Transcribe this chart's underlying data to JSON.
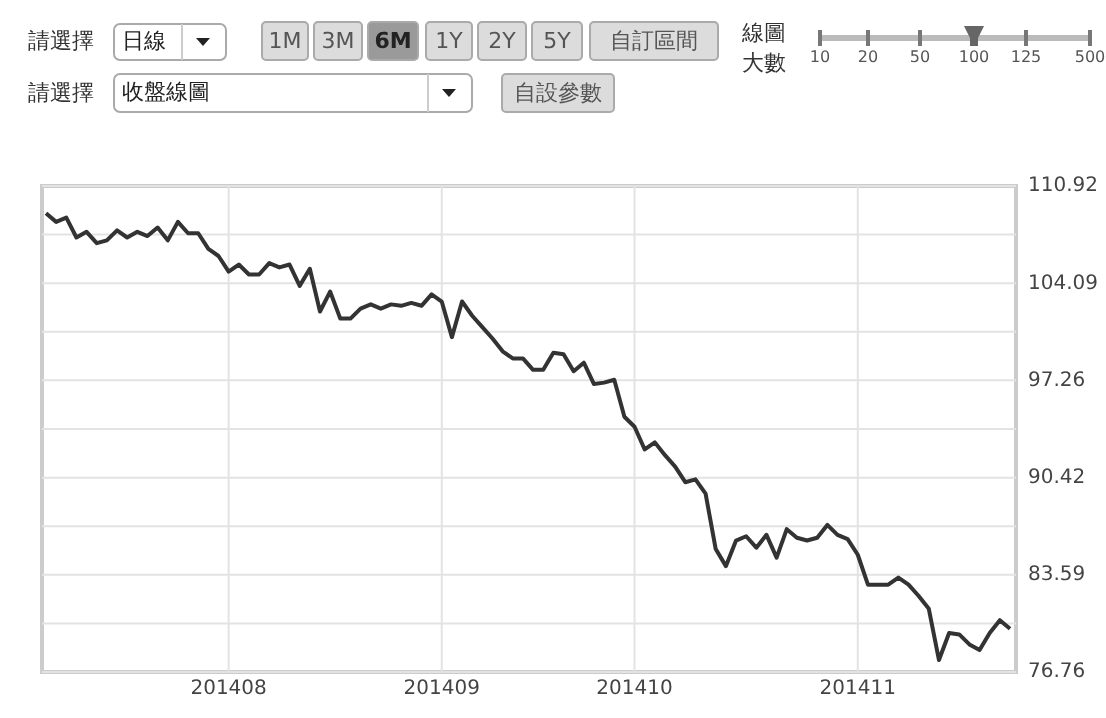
{
  "chart_data": {
    "type": "line",
    "categories": [
      null,
      null,
      null,
      null,
      null,
      null,
      null,
      null,
      null,
      null,
      null,
      null,
      null,
      null,
      null,
      null,
      null,
      null,
      "201408",
      null,
      null,
      null,
      null,
      null,
      null,
      null,
      null,
      null,
      null,
      null,
      null,
      null,
      null,
      null,
      null,
      null,
      null,
      null,
      null,
      "201409",
      null,
      null,
      null,
      null,
      null,
      null,
      null,
      null,
      null,
      null,
      null,
      null,
      null,
      null,
      null,
      null,
      null,
      null,
      "201410",
      null,
      null,
      null,
      null,
      null,
      null,
      null,
      null,
      null,
      null,
      null,
      null,
      null,
      null,
      null,
      null,
      null,
      null,
      null,
      null,
      null,
      "201411",
      null,
      null,
      null,
      null,
      null,
      null,
      null,
      null,
      null,
      null,
      null,
      null,
      null,
      null,
      null
    ],
    "series": [
      {
        "color": "#333333",
        "values": [
          109.0,
          108.4,
          108.7,
          107.3,
          107.7,
          106.9,
          107.1,
          107.8,
          107.3,
          107.7,
          107.4,
          108.0,
          107.1,
          108.4,
          107.6,
          107.6,
          106.5,
          106.0,
          104.9,
          105.4,
          104.7,
          104.7,
          105.5,
          105.2,
          105.4,
          103.9,
          105.1,
          102.1,
          103.5,
          101.6,
          101.6,
          102.3,
          102.6,
          102.3,
          102.6,
          102.5,
          102.7,
          102.5,
          103.3,
          102.8,
          100.3,
          102.8,
          101.8,
          101.0,
          100.2,
          99.3,
          98.8,
          98.8,
          98.0,
          98.0,
          99.2,
          99.1,
          97.9,
          98.5,
          97.0,
          97.1,
          97.3,
          94.7,
          94.0,
          92.4,
          92.9,
          92.0,
          91.2,
          90.1,
          90.3,
          89.3,
          85.4,
          84.2,
          86.0,
          86.3,
          85.5,
          86.4,
          84.8,
          86.8,
          86.2,
          86.0,
          86.2,
          87.1,
          86.4,
          86.1,
          85.0,
          82.9,
          82.9,
          82.9,
          83.4,
          82.9,
          82.1,
          81.2,
          77.6,
          79.5,
          79.4,
          78.7,
          78.3,
          79.5,
          80.4,
          79.8
        ]
      }
    ],
    "ylim": [
      76.76,
      110.92
    ],
    "yticks": [
      110.92,
      {
        "value": 107.505,
        "label": null
      },
      104.09,
      {
        "value": 100.675,
        "label": null
      },
      97.26,
      {
        "value": 93.84,
        "label": null
      },
      90.42,
      {
        "value": 87.005,
        "label": null
      },
      83.59,
      {
        "value": 80.175,
        "label": null
      },
      76.76
    ],
    "grid": true,
    "marker": "none",
    "line_style": "solid",
    "annotations": [
      "請選擇",
      "日線",
      "1M",
      "3M",
      "6M",
      "1Y",
      "2Y",
      "5Y",
      "自訂區間",
      "線圖",
      "大數",
      "10",
      "20",
      "50",
      "100",
      "125",
      "500",
      "請選擇",
      "收盤線圖",
      "自設參數"
    ]
  }
}
